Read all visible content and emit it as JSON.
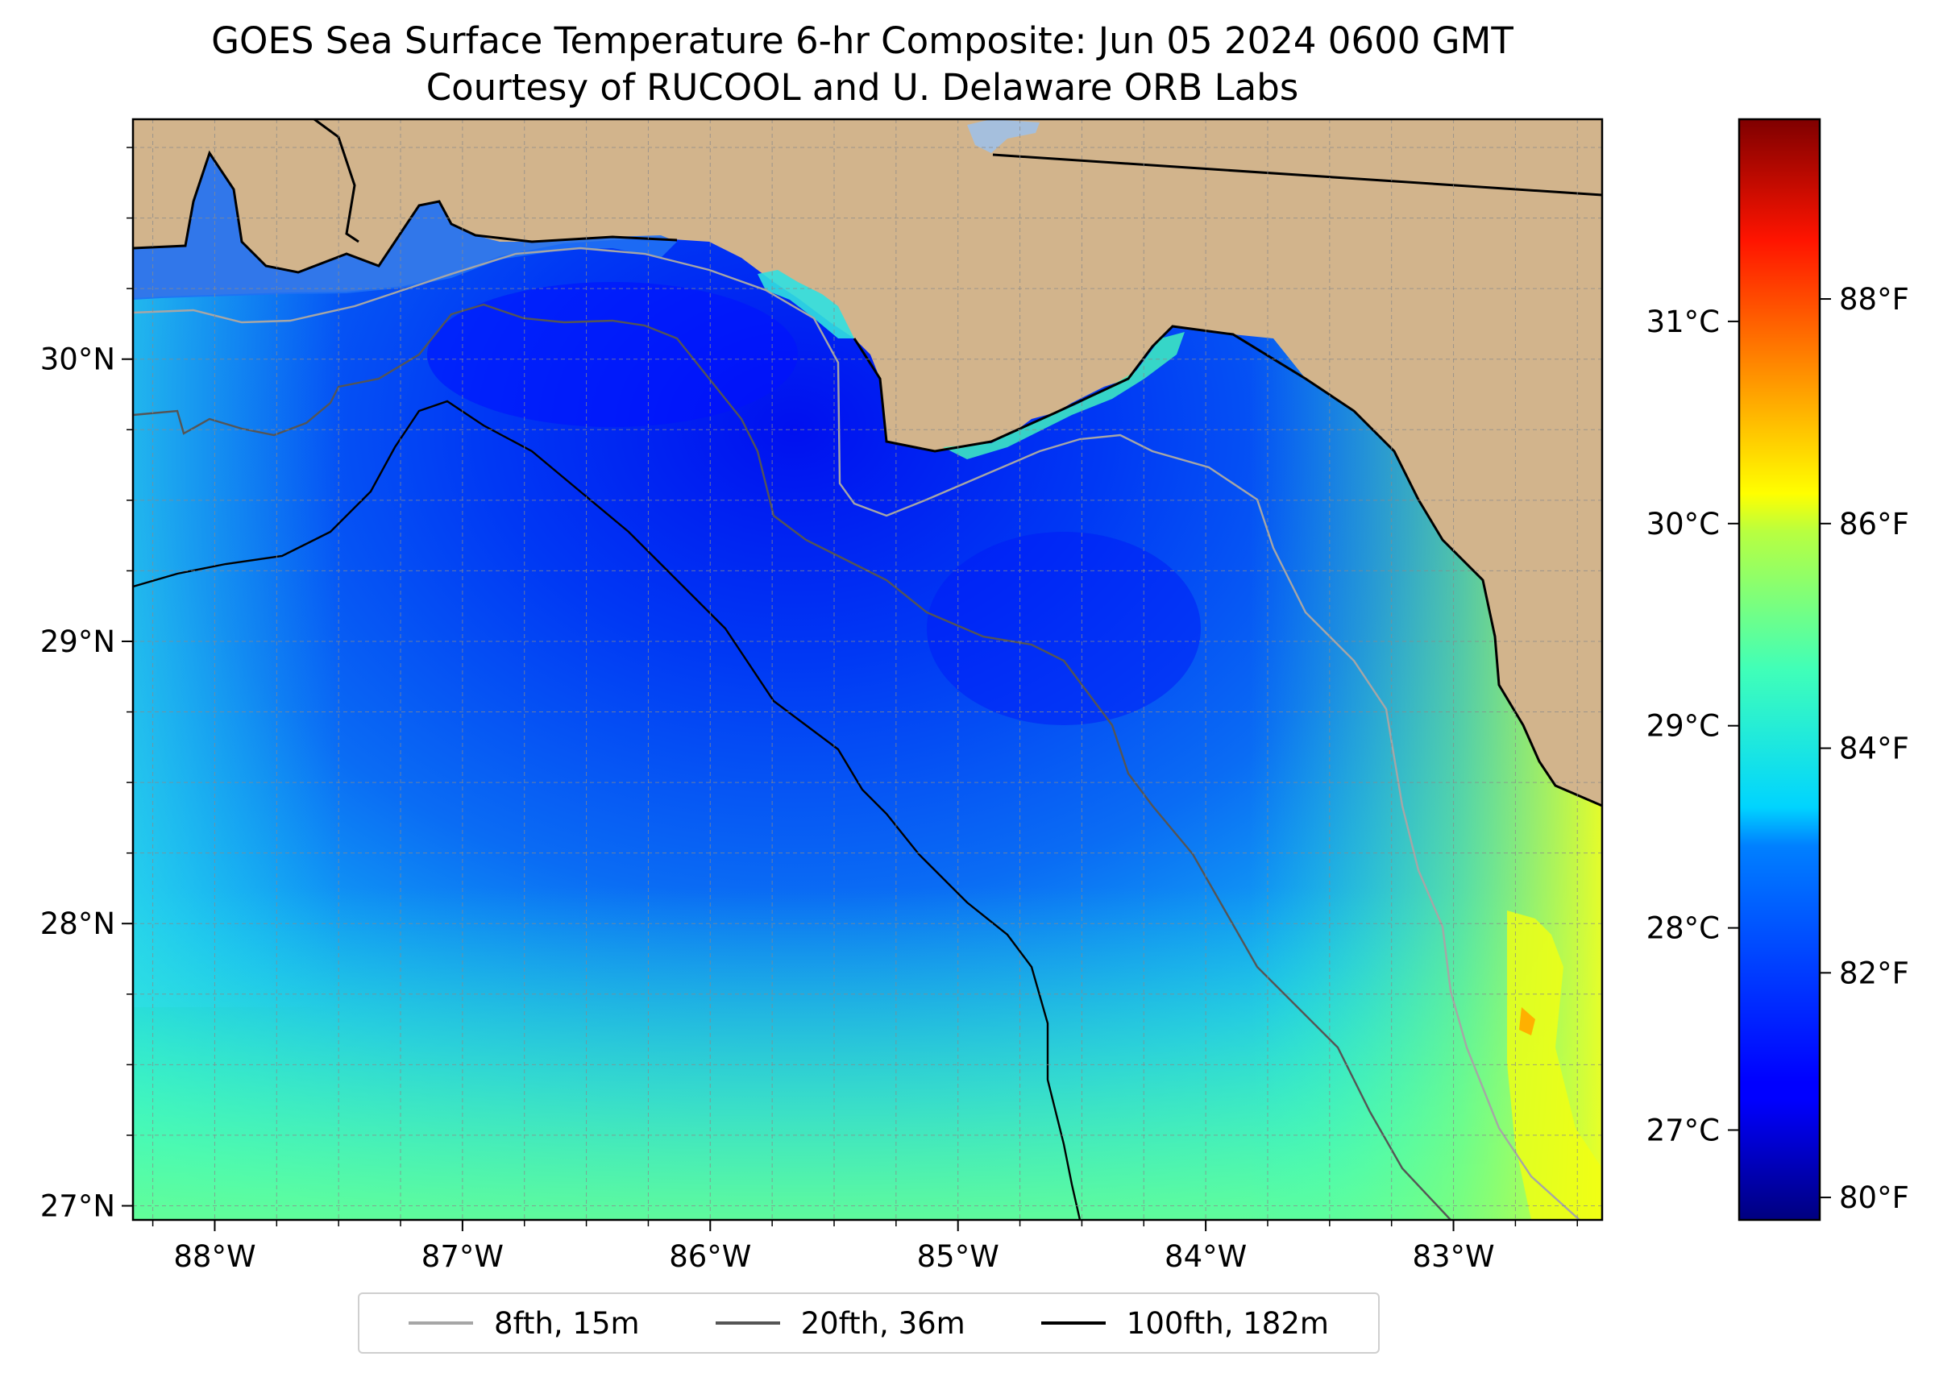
{
  "figure": {
    "title_line1": "GOES Sea Surface Temperature 6-hr Composite: Jun 05 2024 0600 GMT",
    "title_line2": "Courtesy of RUCOOL and U. Delaware ORB Labs"
  },
  "map": {
    "lon_range": [
      -88.33,
      -82.4
    ],
    "lat_range": [
      26.95,
      30.85
    ],
    "lon_ticks": [
      {
        "value": -88,
        "label": "88°W"
      },
      {
        "value": -87,
        "label": "87°W"
      },
      {
        "value": -86,
        "label": "86°W"
      },
      {
        "value": -85,
        "label": "85°W"
      },
      {
        "value": -84,
        "label": "84°W"
      },
      {
        "value": -83,
        "label": "83°W"
      }
    ],
    "lat_ticks": [
      {
        "value": 27,
        "label": "27°N"
      },
      {
        "value": 28,
        "label": "28°N"
      },
      {
        "value": 29,
        "label": "29°N"
      },
      {
        "value": 30,
        "label": "30°N"
      }
    ],
    "gridlines": true,
    "land_color": "#d2b48c",
    "lake_color": "#a5bfdd"
  },
  "colorbar": {
    "colormap": "jet",
    "fahrenheit_range": [
      79.8,
      89.6
    ],
    "celsius_ticks": [
      {
        "value": 27,
        "label": "27°C"
      },
      {
        "value": 28,
        "label": "28°C"
      },
      {
        "value": 29,
        "label": "29°C"
      },
      {
        "value": 30,
        "label": "30°C"
      },
      {
        "value": 31,
        "label": "31°C"
      }
    ],
    "fahrenheit_ticks": [
      {
        "value": 80,
        "label": "80°F"
      },
      {
        "value": 82,
        "label": "82°F"
      },
      {
        "value": 84,
        "label": "84°F"
      },
      {
        "value": 86,
        "label": "86°F"
      },
      {
        "value": 88,
        "label": "88°F"
      }
    ]
  },
  "legend": {
    "placement": "bottom-center",
    "items": [
      {
        "label": "8fth, 15m",
        "color": "#a6a6a6"
      },
      {
        "label": "20fth, 36m",
        "color": "#555555"
      },
      {
        "label": "100fth, 182m",
        "color": "#000000"
      }
    ]
  }
}
